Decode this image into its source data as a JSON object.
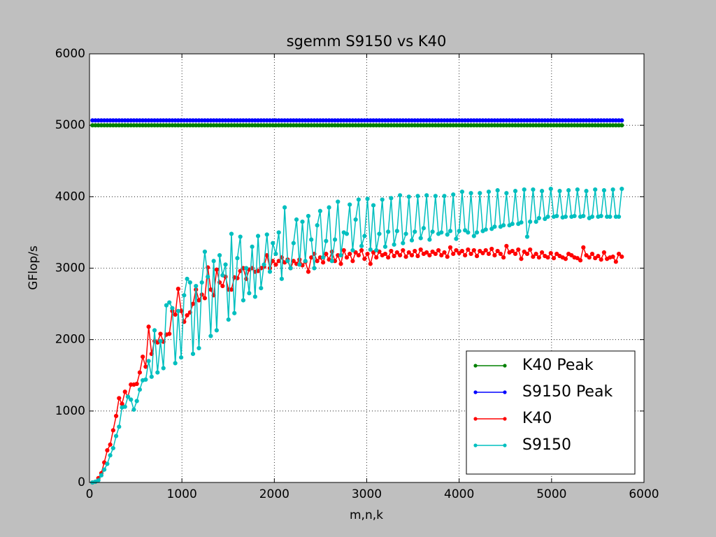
{
  "chart_data": {
    "type": "line",
    "title": "sgemm S9150 vs K40",
    "xlabel": "m,n,k",
    "ylabel": "GFlop/s",
    "xlim": [
      0,
      6000
    ],
    "ylim": [
      0,
      6000
    ],
    "xticks": [
      0,
      1000,
      2000,
      3000,
      4000,
      5000,
      6000
    ],
    "yticks": [
      0,
      1000,
      2000,
      3000,
      4000,
      5000,
      6000
    ],
    "grid": true,
    "legend": "lower right",
    "x": [
      32,
      64,
      96,
      128,
      160,
      192,
      224,
      256,
      288,
      320,
      352,
      384,
      416,
      448,
      480,
      512,
      544,
      576,
      608,
      640,
      672,
      704,
      736,
      768,
      800,
      832,
      864,
      896,
      928,
      960,
      992,
      1024,
      1056,
      1088,
      1120,
      1152,
      1184,
      1216,
      1248,
      1280,
      1312,
      1344,
      1376,
      1408,
      1440,
      1472,
      1504,
      1536,
      1568,
      1600,
      1632,
      1664,
      1696,
      1728,
      1760,
      1792,
      1824,
      1856,
      1888,
      1920,
      1952,
      1984,
      2016,
      2048,
      2080,
      2112,
      2144,
      2176,
      2208,
      2240,
      2272,
      2304,
      2336,
      2368,
      2400,
      2432,
      2464,
      2496,
      2528,
      2560,
      2592,
      2624,
      2656,
      2688,
      2720,
      2752,
      2784,
      2816,
      2848,
      2880,
      2912,
      2944,
      2976,
      3008,
      3040,
      3072,
      3104,
      3136,
      3168,
      3200,
      3232,
      3264,
      3296,
      3328,
      3360,
      3392,
      3424,
      3456,
      3488,
      3520,
      3552,
      3584,
      3616,
      3648,
      3680,
      3712,
      3744,
      3776,
      3808,
      3840,
      3872,
      3904,
      3936,
      3968,
      4000,
      4032,
      4064,
      4096,
      4128,
      4160,
      4192,
      4224,
      4256,
      4288,
      4320,
      4352,
      4384,
      4416,
      4448,
      4480,
      4512,
      4544,
      4576,
      4608,
      4640,
      4672,
      4704,
      4736,
      4768,
      4800,
      4832,
      4864,
      4896,
      4928,
      4960,
      4992,
      5024,
      5056,
      5088,
      5120,
      5152,
      5184,
      5216,
      5248,
      5280,
      5312,
      5344,
      5376,
      5408,
      5440,
      5472,
      5504,
      5536,
      5568,
      5600,
      5632,
      5664,
      5696,
      5728,
      5760
    ],
    "series": [
      {
        "name": "K40 Peak",
        "color": "#008000",
        "values": [
          5000,
          5000,
          5000,
          5000,
          5000,
          5000,
          5000,
          5000,
          5000,
          5000,
          5000,
          5000,
          5000,
          5000,
          5000,
          5000,
          5000,
          5000,
          5000,
          5000,
          5000,
          5000,
          5000,
          5000,
          5000,
          5000,
          5000,
          5000,
          5000,
          5000,
          5000,
          5000,
          5000,
          5000,
          5000,
          5000,
          5000,
          5000,
          5000,
          5000,
          5000,
          5000,
          5000,
          5000,
          5000,
          5000,
          5000,
          5000,
          5000,
          5000,
          5000,
          5000,
          5000,
          5000,
          5000,
          5000,
          5000,
          5000,
          5000,
          5000,
          5000,
          5000,
          5000,
          5000,
          5000,
          5000,
          5000,
          5000,
          5000,
          5000,
          5000,
          5000,
          5000,
          5000,
          5000,
          5000,
          5000,
          5000,
          5000,
          5000,
          5000,
          5000,
          5000,
          5000,
          5000,
          5000,
          5000,
          5000,
          5000,
          5000,
          5000,
          5000,
          5000,
          5000,
          5000,
          5000,
          5000,
          5000,
          5000,
          5000,
          5000,
          5000,
          5000,
          5000,
          5000,
          5000,
          5000,
          5000,
          5000,
          5000,
          5000,
          5000,
          5000,
          5000,
          5000,
          5000,
          5000,
          5000,
          5000,
          5000,
          5000,
          5000,
          5000,
          5000,
          5000,
          5000,
          5000,
          5000,
          5000,
          5000,
          5000,
          5000,
          5000,
          5000,
          5000,
          5000,
          5000,
          5000,
          5000,
          5000,
          5000,
          5000,
          5000,
          5000,
          5000,
          5000,
          5000,
          5000,
          5000,
          5000,
          5000,
          5000,
          5000,
          5000,
          5000,
          5000,
          5000,
          5000,
          5000,
          5000,
          5000,
          5000,
          5000,
          5000,
          5000,
          5000,
          5000,
          5000,
          5000,
          5000,
          5000,
          5000,
          5000,
          5000,
          5000,
          5000,
          5000,
          5000,
          5000,
          5000
        ]
      },
      {
        "name": "S9150 Peak",
        "color": "#0000ff",
        "values": [
          5068,
          5068,
          5068,
          5068,
          5068,
          5068,
          5068,
          5068,
          5068,
          5068,
          5068,
          5068,
          5068,
          5068,
          5068,
          5068,
          5068,
          5068,
          5068,
          5068,
          5068,
          5068,
          5068,
          5068,
          5068,
          5068,
          5068,
          5068,
          5068,
          5068,
          5068,
          5068,
          5068,
          5068,
          5068,
          5068,
          5068,
          5068,
          5068,
          5068,
          5068,
          5068,
          5068,
          5068,
          5068,
          5068,
          5068,
          5068,
          5068,
          5068,
          5068,
          5068,
          5068,
          5068,
          5068,
          5068,
          5068,
          5068,
          5068,
          5068,
          5068,
          5068,
          5068,
          5068,
          5068,
          5068,
          5068,
          5068,
          5068,
          5068,
          5068,
          5068,
          5068,
          5068,
          5068,
          5068,
          5068,
          5068,
          5068,
          5068,
          5068,
          5068,
          5068,
          5068,
          5068,
          5068,
          5068,
          5068,
          5068,
          5068,
          5068,
          5068,
          5068,
          5068,
          5068,
          5068,
          5068,
          5068,
          5068,
          5068,
          5068,
          5068,
          5068,
          5068,
          5068,
          5068,
          5068,
          5068,
          5068,
          5068,
          5068,
          5068,
          5068,
          5068,
          5068,
          5068,
          5068,
          5068,
          5068,
          5068,
          5068,
          5068,
          5068,
          5068,
          5068,
          5068,
          5068,
          5068,
          5068,
          5068,
          5068,
          5068,
          5068,
          5068,
          5068,
          5068,
          5068,
          5068,
          5068,
          5068,
          5068,
          5068,
          5068,
          5068,
          5068,
          5068,
          5068,
          5068,
          5068,
          5068,
          5068,
          5068,
          5068,
          5068,
          5068,
          5068,
          5068,
          5068,
          5068,
          5068,
          5068,
          5068,
          5068,
          5068,
          5068,
          5068,
          5068,
          5068,
          5068,
          5068,
          5068,
          5068,
          5068,
          5068,
          5068,
          5068,
          5068,
          5068,
          5068,
          5068
        ]
      },
      {
        "name": "K40",
        "color": "#ff0000",
        "values": [
          0,
          10,
          60,
          130,
          280,
          450,
          530,
          730,
          930,
          1180,
          1100,
          1270,
          1200,
          1370,
          1370,
          1380,
          1540,
          1760,
          1620,
          2180,
          1800,
          1980,
          1960,
          2080,
          1970,
          2070,
          2080,
          2400,
          2350,
          2710,
          2400,
          2250,
          2340,
          2380,
          2500,
          2700,
          2550,
          2630,
          2580,
          3010,
          2700,
          2620,
          2980,
          2800,
          2750,
          2880,
          2700,
          2700,
          2870,
          2860,
          2960,
          3000,
          2850,
          2980,
          3000,
          2950,
          2960,
          3000,
          3020,
          3180,
          3000,
          3100,
          3050,
          3100,
          3150,
          3080,
          3120,
          3000,
          3100,
          3060,
          3120,
          3040,
          3090,
          2950,
          3150,
          3200,
          3100,
          3150,
          3080,
          3200,
          3120,
          3230,
          3100,
          3180,
          3060,
          3250,
          3150,
          3200,
          3100,
          3220,
          3180,
          3250,
          3130,
          3200,
          3060,
          3220,
          3150,
          3230,
          3180,
          3200,
          3150,
          3240,
          3170,
          3220,
          3180,
          3250,
          3160,
          3220,
          3180,
          3240,
          3170,
          3260,
          3200,
          3220,
          3180,
          3230,
          3200,
          3250,
          3180,
          3220,
          3160,
          3290,
          3200,
          3250,
          3210,
          3240,
          3180,
          3260,
          3200,
          3250,
          3170,
          3240,
          3210,
          3250,
          3200,
          3270,
          3180,
          3240,
          3200,
          3150,
          3310,
          3220,
          3240,
          3200,
          3260,
          3130,
          3230,
          3200,
          3260,
          3160,
          3200,
          3150,
          3220,
          3170,
          3150,
          3210,
          3140,
          3200,
          3170,
          3150,
          3130,
          3200,
          3180,
          3150,
          3140,
          3110,
          3290,
          3180,
          3150,
          3200,
          3140,
          3170,
          3120,
          3220,
          3130,
          3150,
          3160,
          3090,
          3200,
          3160
        ]
      },
      {
        "name": "S9150",
        "color": "#00bfbf",
        "values": [
          0,
          10,
          30,
          100,
          180,
          260,
          380,
          480,
          650,
          780,
          1050,
          1060,
          1200,
          1160,
          1020,
          1140,
          1300,
          1430,
          1440,
          1700,
          1480,
          2130,
          1540,
          1980,
          1600,
          2480,
          2520,
          2440,
          1670,
          2400,
          1750,
          2620,
          2850,
          2800,
          1800,
          2750,
          1880,
          2800,
          3230,
          2880,
          2050,
          3100,
          2130,
          3180,
          2900,
          3050,
          2280,
          3480,
          2370,
          3140,
          3440,
          2550,
          3000,
          2650,
          3300,
          2600,
          3450,
          2720,
          3050,
          3470,
          2950,
          3350,
          3200,
          3500,
          2850,
          3850,
          3100,
          3000,
          3350,
          3680,
          3050,
          3650,
          3100,
          3730,
          3400,
          3000,
          3600,
          3800,
          3150,
          3380,
          3850,
          3100,
          3400,
          3930,
          3180,
          3500,
          3480,
          3890,
          3250,
          3680,
          3960,
          3310,
          3450,
          3970,
          3260,
          3880,
          3250,
          3480,
          3960,
          3300,
          3510,
          3980,
          3330,
          3520,
          4020,
          3350,
          3480,
          4000,
          3390,
          3510,
          4010,
          3420,
          3560,
          4020,
          3400,
          3510,
          4010,
          3480,
          3500,
          4010,
          3470,
          3520,
          4030,
          3410,
          3520,
          4070,
          3530,
          3500,
          4050,
          3450,
          3500,
          4050,
          3520,
          3540,
          4070,
          3550,
          3580,
          4090,
          3580,
          3600,
          4050,
          3600,
          3620,
          4080,
          3620,
          3640,
          4100,
          3440,
          3650,
          4100,
          3650,
          3700,
          4080,
          3690,
          3720,
          4110,
          3720,
          3730,
          4080,
          3710,
          3720,
          4090,
          3720,
          3730,
          4100,
          3720,
          3730,
          4080,
          3700,
          3720,
          4100,
          3720,
          3730,
          4090,
          3720,
          3720,
          4100,
          3720,
          3720,
          4110
        ]
      }
    ]
  }
}
